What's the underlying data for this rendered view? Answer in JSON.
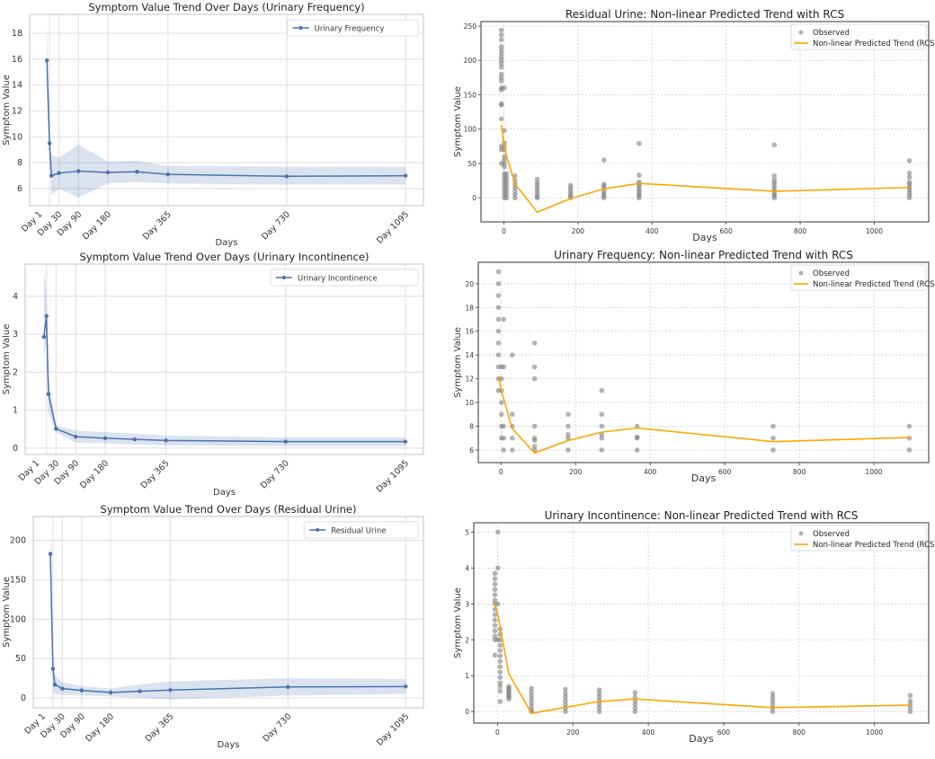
{
  "chart_data": [
    {
      "type": "line",
      "style": "seaborn",
      "title": "Symptom Value Trend Over Days (Urinary Frequency)",
      "xlabel": "Days",
      "ylabel": "Symptom Value",
      "xlim": [
        -60,
        1150
      ],
      "ylim": [
        4.68,
        19.46
      ],
      "yticks": [
        6,
        8,
        10,
        12,
        14,
        16,
        18
      ],
      "xticks": [
        1,
        30,
        90,
        180,
        365,
        730,
        1095
      ],
      "xtick_labels": [
        "Day 1",
        "Day 30",
        "Day 90",
        "Day 180",
        "Day 365",
        "Day 730",
        "Day 1095"
      ],
      "legend": [
        "Urinary Frequency"
      ],
      "legend_position": "top-right",
      "grid": true,
      "x": [
        -7,
        1,
        7,
        30,
        90,
        180,
        270,
        365,
        730,
        1095
      ],
      "y": [
        15.9,
        9.5,
        7.0,
        7.2,
        7.35,
        7.25,
        7.3,
        7.1,
        6.95,
        7.0
      ],
      "ci_low": [
        13.0,
        8.5,
        5.5,
        6.0,
        5.3,
        6.4,
        6.5,
        6.4,
        6.3,
        6.3
      ],
      "ci_high": [
        18.8,
        10.8,
        8.6,
        8.4,
        9.4,
        8.1,
        8.15,
        7.75,
        7.7,
        7.7
      ]
    },
    {
      "type": "line",
      "style": "seaborn",
      "title": "Symptom Value Trend Over Days (Urinary Incontinence)",
      "xlabel": "Days",
      "ylabel": "Symptom Value",
      "xlim": [
        -64,
        1150
      ],
      "ylim": [
        -0.17,
        4.85
      ],
      "yticks": [
        0,
        1,
        2,
        3,
        4
      ],
      "xticks": [
        1,
        30,
        90,
        180,
        365,
        730,
        1095
      ],
      "xtick_labels": [
        "Day 1",
        "Day 30",
        "Day 90",
        "Day 180",
        "Day 365",
        "Day 730",
        "Day 1095"
      ],
      "legend": [
        "Urinary Incontinence"
      ],
      "legend_position": "top-right",
      "grid": true,
      "x": [
        -7,
        1,
        7,
        30,
        90,
        180,
        270,
        365,
        730,
        1095
      ],
      "y": [
        2.93,
        3.48,
        1.42,
        0.51,
        0.3,
        0.26,
        0.23,
        0.2,
        0.17,
        0.17
      ],
      "ci_low": [
        2.35,
        2.9,
        0.95,
        0.42,
        0.14,
        0.12,
        0.1,
        0.07,
        0.05,
        0.05
      ],
      "ci_high": [
        4.65,
        4.1,
        1.9,
        0.6,
        0.46,
        0.42,
        0.38,
        0.33,
        0.28,
        0.28
      ]
    },
    {
      "type": "line",
      "style": "seaborn",
      "title": "Symptom Value Trend Over Days (Residual Urine)",
      "xlabel": "Days",
      "ylabel": "Symptom Value",
      "xlim": [
        -60,
        1150
      ],
      "ylim": [
        -12.5,
        230.5
      ],
      "yticks": [
        0,
        50,
        100,
        150,
        200
      ],
      "xticks": [
        1,
        30,
        90,
        180,
        365,
        730,
        1095
      ],
      "xtick_labels": [
        "Day 1",
        "Day 30",
        "Day 90",
        "Day 180",
        "Day 365",
        "Day 730",
        "Day 1095"
      ],
      "legend": [
        "Residual Urine"
      ],
      "legend_position": "top-right",
      "grid": true,
      "x": [
        -7,
        1,
        7,
        30,
        90,
        180,
        270,
        365,
        730,
        1095
      ],
      "y": [
        183,
        37,
        17,
        12,
        9.5,
        7,
        8.5,
        10,
        14,
        14.5
      ],
      "ci_low": [
        150,
        5,
        5,
        4,
        3,
        2,
        0,
        -2,
        3,
        5
      ],
      "ci_high": [
        220,
        60,
        30,
        20,
        15,
        12,
        17,
        21,
        25,
        24
      ]
    },
    {
      "type": "scatter",
      "style": "matplotlib",
      "title": "Residual Urine: Non-linear Predicted Trend with RCS",
      "xlabel": "Days",
      "ylabel": "Symptom Value",
      "xlim": [
        -62,
        1147
      ],
      "ylim": [
        -35,
        256.5
      ],
      "yticks": [
        0,
        50,
        100,
        150,
        200,
        250
      ],
      "xticks": [
        0,
        200,
        400,
        600,
        800,
        1000
      ],
      "legend": [
        "Observed",
        "Non-linear Predicted Trend (RCS)"
      ],
      "legend_position": "top-right",
      "grid": true,
      "observed": [
        {
          "x": -7,
          "y": [
            244,
            237,
            230,
            220,
            215,
            210,
            205,
            200,
            195,
            190,
            180,
            175,
            170,
            160,
            157,
            137,
            135,
            115,
            75,
            70,
            50
          ]
        },
        {
          "x": 1,
          "y": [
            160,
            98,
            80,
            75,
            70,
            60,
            55,
            50,
            45,
            35,
            30,
            25,
            20,
            15,
            10,
            5,
            0
          ]
        },
        {
          "x": 7,
          "y": [
            35,
            30,
            25,
            20,
            15,
            10,
            5,
            0
          ]
        },
        {
          "x": 30,
          "y": [
            32,
            25,
            20,
            15,
            10,
            5,
            0
          ]
        },
        {
          "x": 90,
          "y": [
            27,
            22,
            18,
            14,
            10,
            6,
            2,
            0
          ]
        },
        {
          "x": 180,
          "y": [
            18,
            14,
            10,
            6,
            3,
            0
          ]
        },
        {
          "x": 270,
          "y": [
            55,
            20,
            17,
            14,
            10,
            6,
            3,
            0
          ]
        },
        {
          "x": 365,
          "y": [
            79,
            33,
            23,
            20,
            17,
            13,
            10,
            6,
            3,
            0
          ]
        },
        {
          "x": 730,
          "y": [
            77,
            32,
            26,
            22,
            18,
            14,
            10,
            6,
            3,
            0
          ]
        },
        {
          "x": 1095,
          "y": [
            54,
            36,
            30,
            23,
            20,
            16,
            12,
            8,
            4,
            0
          ]
        }
      ],
      "trend": {
        "x": [
          -7,
          1,
          30,
          90,
          180,
          270,
          365,
          730,
          1095
        ],
        "y": [
          106,
          72,
          20,
          -21,
          -1,
          13,
          21,
          9.5,
          15
        ]
      }
    },
    {
      "type": "scatter",
      "style": "matplotlib",
      "title": "Urinary Frequency: Non-linear Predicted Trend with RCS",
      "xlabel": "Days",
      "ylabel": "Symptom Value",
      "xlim": [
        -61,
        1147
      ],
      "ylim": [
        4.94,
        21.8
      ],
      "yticks": [
        6,
        8,
        10,
        12,
        14,
        16,
        18,
        20
      ],
      "xticks": [
        0,
        200,
        400,
        600,
        800,
        1000
      ],
      "legend": [
        "Observed",
        "Non-linear Predicted Trend (RCS)"
      ],
      "legend_position": "top-right",
      "grid": true,
      "observed": [
        {
          "x": -7,
          "y": [
            21,
            20,
            19,
            18,
            17,
            16,
            15,
            14,
            13,
            12,
            11
          ]
        },
        {
          "x": 1,
          "y": [
            13,
            12,
            11,
            10,
            9,
            8,
            7
          ]
        },
        {
          "x": 7,
          "y": [
            17,
            13,
            8,
            7,
            6
          ]
        },
        {
          "x": 30,
          "y": [
            14,
            9,
            8,
            7,
            6
          ]
        },
        {
          "x": 90,
          "y": [
            15,
            13,
            12,
            8,
            7,
            6.8,
            6.3,
            6
          ]
        },
        {
          "x": 180,
          "y": [
            9,
            8,
            7.3,
            7,
            6
          ]
        },
        {
          "x": 270,
          "y": [
            11,
            9,
            8,
            7.3,
            7,
            6
          ]
        },
        {
          "x": 365,
          "y": [
            8,
            7.1,
            7,
            6
          ]
        },
        {
          "x": 730,
          "y": [
            8,
            7,
            6
          ]
        },
        {
          "x": 1095,
          "y": [
            8,
            7,
            6
          ]
        }
      ],
      "trend": {
        "x": [
          -7,
          1,
          30,
          90,
          180,
          270,
          365,
          730,
          1095
        ],
        "y": [
          12.2,
          11,
          7.8,
          5.75,
          6.8,
          7.5,
          7.85,
          6.7,
          7.05
        ]
      }
    },
    {
      "type": "scatter",
      "style": "matplotlib",
      "title": "Urinary Incontinence: Non-linear Predicted Trend with RCS",
      "xlabel": "Days",
      "ylabel": "Symptom Value",
      "xlim": [
        -63,
        1144
      ],
      "ylim": [
        -0.32,
        5.26
      ],
      "yticks": [
        0,
        1,
        2,
        3,
        4,
        5
      ],
      "xticks": [
        0,
        200,
        400,
        600,
        800,
        1000
      ],
      "legend": [
        "Observed",
        "Non-linear Predicted Trend (RCS)"
      ],
      "legend_position": "top-right",
      "grid": true,
      "observed": [
        {
          "x": -7,
          "y": [
            3.85,
            3.7,
            3.55,
            3.4,
            3.25,
            3.1,
            3.0,
            2.85,
            2.7,
            2.55,
            2.4,
            2.25,
            2.1,
            2.0,
            1.57
          ]
        },
        {
          "x": 1,
          "y": [
            5,
            4,
            3,
            2
          ]
        },
        {
          "x": 7,
          "y": [
            2.3,
            2.15,
            2.0,
            1.85,
            1.7,
            1.55,
            1.4,
            1.25,
            1.1,
            0.95,
            0.8,
            0.7,
            0.57,
            0.28
          ]
        },
        {
          "x": 30,
          "y": [
            0.7,
            0.65,
            0.6,
            0.55,
            0.5,
            0.45,
            0.4,
            0.35
          ]
        },
        {
          "x": 90,
          "y": [
            0.65,
            0.55,
            0.45,
            0.35,
            0.25,
            0.15,
            0.05,
            0
          ]
        },
        {
          "x": 180,
          "y": [
            0.62,
            0.5,
            0.4,
            0.3,
            0.2,
            0.1,
            0
          ]
        },
        {
          "x": 270,
          "y": [
            0.6,
            0.5,
            0.4,
            0.3,
            0.2,
            0.1,
            0
          ]
        },
        {
          "x": 365,
          "y": [
            0.53,
            0.4,
            0.3,
            0.2,
            0.1,
            0
          ]
        },
        {
          "x": 730,
          "y": [
            0.5,
            0.4,
            0.3,
            0.2,
            0.1,
            0
          ]
        },
        {
          "x": 1095,
          "y": [
            0.45,
            0.3,
            0.2,
            0.1,
            0
          ]
        }
      ],
      "trend": {
        "x": [
          -7,
          1,
          30,
          90,
          180,
          270,
          365,
          730,
          1095
        ],
        "y": [
          3.0,
          2.7,
          1.05,
          -0.05,
          0.12,
          0.28,
          0.35,
          0.11,
          0.18
        ]
      }
    }
  ]
}
